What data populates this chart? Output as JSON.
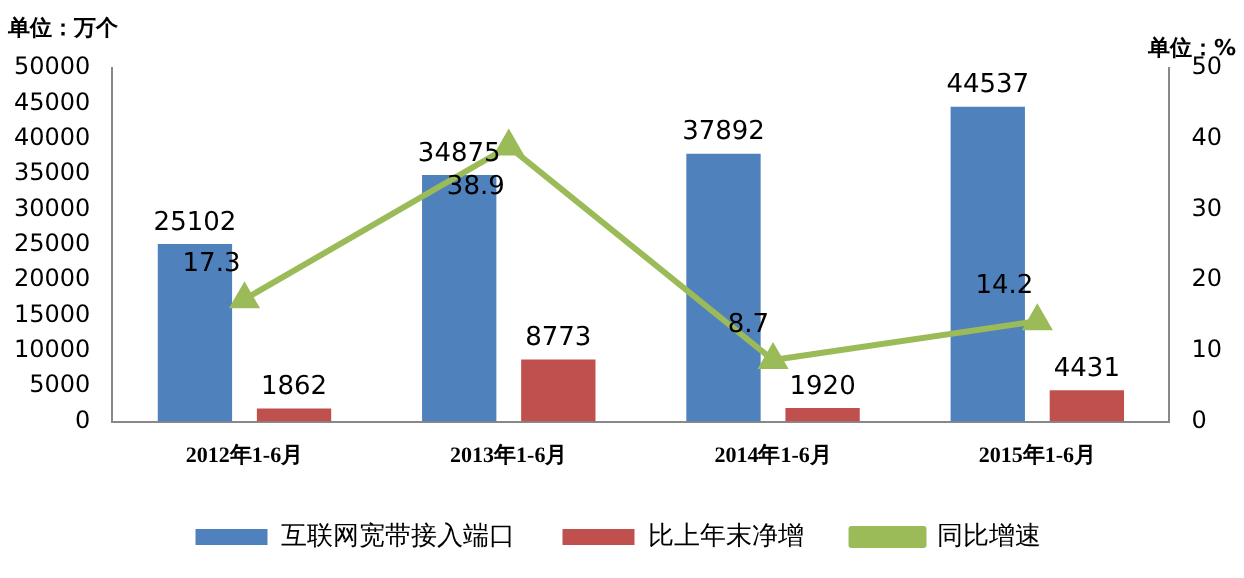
{
  "chart_data": {
    "type": "bar",
    "ylabel": "单位：万个",
    "y2label": "单位：%",
    "categories": [
      "2012年1-6月",
      "2013年1-6月",
      "2014年1-6月",
      "2015年1-6月"
    ],
    "series": [
      {
        "name": "互联网宽带接入端口",
        "color": "#4f81bd",
        "values": [
          25102,
          34875,
          37892,
          44537
        ]
      },
      {
        "name": "比上年末净增",
        "color": "#c0504d",
        "values": [
          1862,
          8773,
          1920,
          4431
        ]
      },
      {
        "name": "同比增速",
        "type": "line",
        "axis": "y2",
        "color": "#9bbb59",
        "marker": "triangle",
        "values": [
          17.3,
          38.9,
          8.7,
          14.2
        ]
      }
    ],
    "ylim": [
      0,
      50000
    ],
    "yticks": [
      0,
      5000,
      10000,
      15000,
      20000,
      25000,
      30000,
      35000,
      40000,
      45000,
      50000
    ],
    "y2lim": [
      0,
      50
    ],
    "y2ticks": [
      0,
      10,
      20,
      30,
      40,
      50
    ],
    "grid": false,
    "legend": "bottom",
    "data_labels": true
  }
}
